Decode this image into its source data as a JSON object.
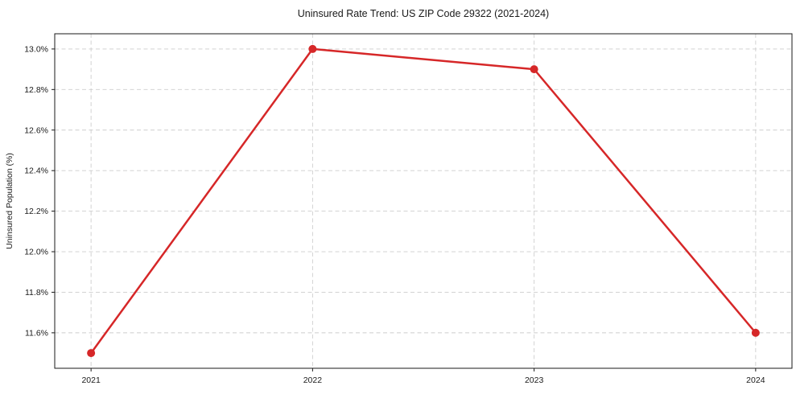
{
  "chart_data": {
    "type": "line",
    "title": "Uninsured Rate Trend: US ZIP Code 29322 (2021-2024)",
    "xlabel": "",
    "ylabel": "Uninsured Population (%)",
    "x": [
      2021,
      2022,
      2023,
      2024
    ],
    "x_tick_labels": [
      "2021",
      "2022",
      "2023",
      "2024"
    ],
    "series": [
      {
        "name": "uninsured-rate",
        "values": [
          11.5,
          13.0,
          12.9,
          11.6
        ],
        "color": "#d62728",
        "line_width": 2.5,
        "marker": "circle",
        "marker_radius": 5
      }
    ],
    "xlim": [
      2020.836,
      2024.164
    ],
    "ylim": [
      11.425,
      13.075
    ],
    "yticks": [
      11.6,
      11.8,
      12.0,
      12.2,
      12.4,
      12.6,
      12.8,
      13.0
    ],
    "ytick_labels": [
      "11.6%",
      "11.8%",
      "12.0%",
      "12.2%",
      "12.4%",
      "12.6%",
      "12.8%",
      "13.0%"
    ],
    "grid": true,
    "grid_style": "dashed",
    "grid_color": "#cdcdcd",
    "axis_color": "#1a1a1a",
    "text_color": "#1a1a1a",
    "background_color": "#ffffff",
    "legend_position": "none"
  }
}
